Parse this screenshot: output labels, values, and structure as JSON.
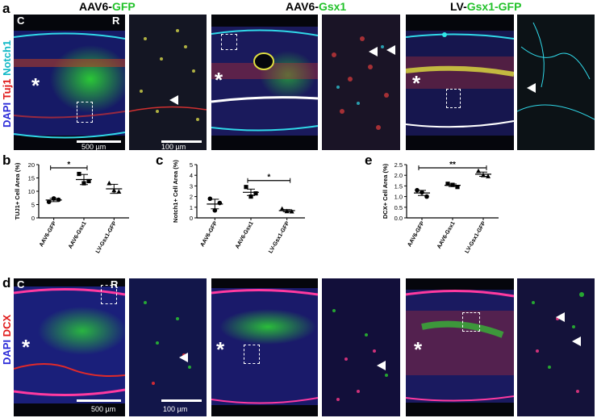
{
  "panel_a": {
    "label": "a",
    "titles": {
      "col1_prefix": "AAV6-",
      "col1_colored": "GFP",
      "col2_prefix": "AAV6-",
      "col2_colored": "Gsx1",
      "col3_prefix": "LV-",
      "col3_colored": "Gsx1-GFP"
    },
    "stain_labels": [
      "DAPI",
      "Tuj1",
      "Notch1"
    ],
    "corner_c": "C",
    "corner_r": "R",
    "scalebar_main": "500 µm",
    "scalebar_zoom": "100 µm",
    "star": "*"
  },
  "panel_d": {
    "label": "d",
    "stain_labels": [
      "DAPI",
      "DCX"
    ],
    "corner_c": "C",
    "corner_r": "R",
    "scalebar_main": "500 µm",
    "scalebar_zoom": "100 µm",
    "star": "*"
  },
  "colors": {
    "dapi": "#3a3aff",
    "red": "#ff2a2a",
    "cyan": "#29e0e6",
    "green": "#2ee62e"
  },
  "chart_data": [
    {
      "panel": "b",
      "type": "scatter",
      "ylabel": "TUJ1+ Cell Area (%)",
      "categories": [
        "AAV6-GFP",
        "AAV6-Gsx1",
        "LV-Gsx1-GFP"
      ],
      "markers": [
        "circle",
        "square",
        "triangle"
      ],
      "points": [
        [
          6.0,
          7.3,
          6.8
        ],
        [
          16.5,
          13.0,
          13.8
        ],
        [
          13.0,
          10.3,
          9.8
        ]
      ],
      "means": [
        6.7,
        14.4,
        10.9
      ],
      "sem": [
        0.6,
        1.9,
        1.7
      ],
      "ylim": [
        0,
        20
      ],
      "yticks": [
        0,
        5,
        10,
        15,
        20
      ],
      "significance": [
        {
          "from": 0,
          "to": 1,
          "label": "*"
        }
      ]
    },
    {
      "panel": "c",
      "type": "scatter",
      "ylabel": "Notch1+ Cell Area (%)",
      "categories": [
        "AAV6-GFP",
        "AAV6-Gsx1",
        "LV-Gsx1-GFP"
      ],
      "markers": [
        "circle",
        "square",
        "triangle"
      ],
      "points": [
        [
          1.8,
          0.7,
          1.4
        ],
        [
          2.9,
          2.0,
          2.3
        ],
        [
          0.85,
          0.62,
          0.6
        ]
      ],
      "means": [
        1.3,
        2.4,
        0.68
      ],
      "sem": [
        0.45,
        0.3,
        0.1
      ],
      "ylim": [
        0,
        5
      ],
      "yticks": [
        0,
        1,
        2,
        3,
        4,
        5
      ],
      "significance": [
        {
          "from": 1,
          "to": 2,
          "label": "*"
        }
      ]
    },
    {
      "panel": "e",
      "type": "scatter",
      "ylabel": "DCX+ Cell Area (%)",
      "categories": [
        "AAV6-GFP",
        "AAV6-Gsx1",
        "LV-Gsx1-GFP"
      ],
      "markers": [
        "circle",
        "square",
        "triangle"
      ],
      "points": [
        [
          1.3,
          1.2,
          1.0
        ],
        [
          1.6,
          1.55,
          1.45
        ],
        [
          2.2,
          2.0,
          1.95
        ]
      ],
      "means": [
        1.17,
        1.53,
        2.05
      ],
      "sem": [
        0.12,
        0.06,
        0.1
      ],
      "ylim": [
        0,
        2.5
      ],
      "yticks": [
        0.0,
        0.5,
        1.0,
        1.5,
        2.0,
        2.5
      ],
      "significance": [
        {
          "from": 0,
          "to": 2,
          "label": "**"
        }
      ]
    }
  ]
}
